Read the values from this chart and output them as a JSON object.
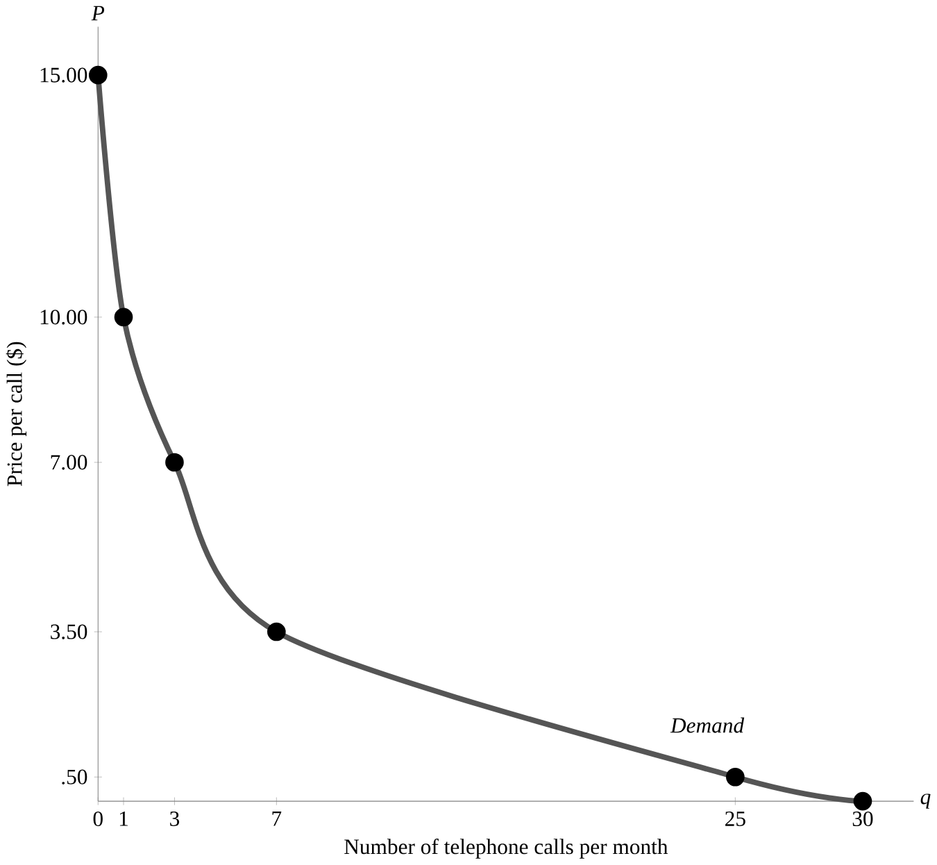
{
  "chart_data": {
    "type": "line",
    "xlabel": "Number of telephone calls per month",
    "ylabel": "Price per call ($)",
    "annotations": [
      "P",
      "q",
      "Demand"
    ],
    "x": [
      0,
      1,
      3,
      7,
      25,
      30
    ],
    "series": [
      {
        "color": "#555555",
        "values": [
          15,
          10,
          7,
          3.5,
          0.5,
          0
        ]
      }
    ],
    "xlim": [
      0,
      32
    ],
    "ylim": [
      0,
      16
    ],
    "xticks": [
      0,
      1,
      3,
      7,
      25,
      30
    ],
    "yticks": [
      {
        "value": 0.5,
        "label": ".50"
      },
      {
        "value": 3.5,
        "label": "3.50"
      },
      {
        "value": 7,
        "label": "7.00"
      },
      {
        "value": 10,
        "label": "10.00"
      },
      {
        "value": 15,
        "label": "15.00"
      }
    ],
    "marker": "circle",
    "line_style": "solid"
  }
}
